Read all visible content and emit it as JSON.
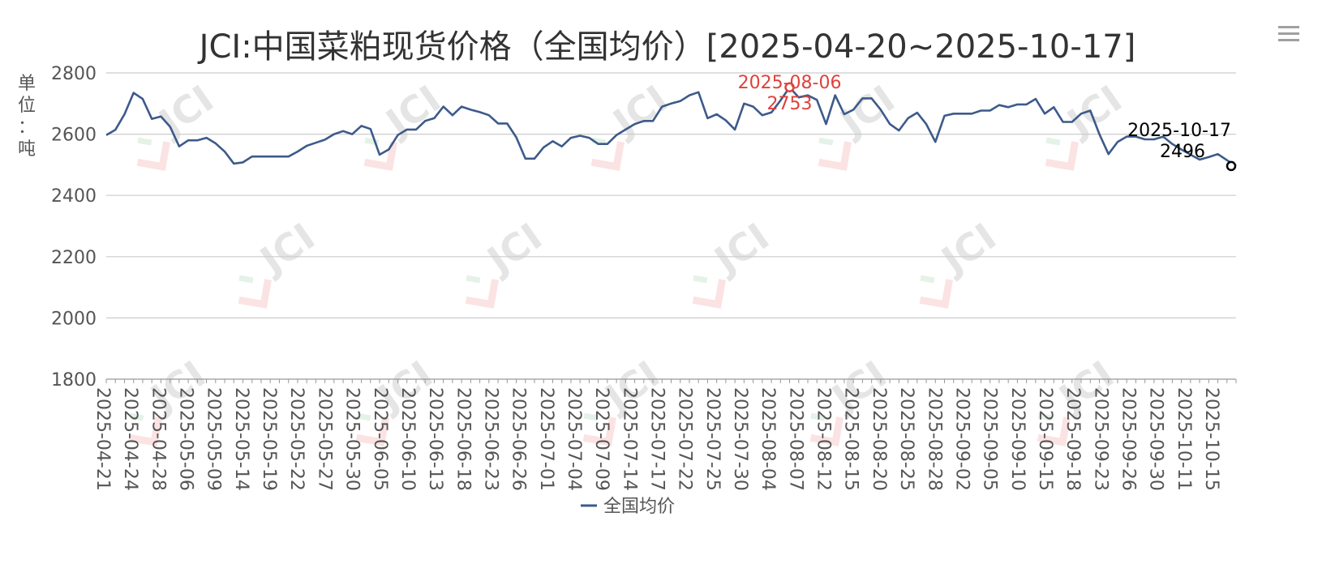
{
  "chart_data": {
    "type": "line",
    "title": "JCI:中国菜粕现货价格（全国均价）[2025-04-20~2025-10-17]",
    "ylabel": "单位：吨",
    "ylim": [
      1800,
      2800
    ],
    "y_ticks": [
      "2800",
      "2600",
      "2400",
      "2200",
      "2000",
      "1800"
    ],
    "grid": true,
    "legend_position": "bottom",
    "x_tick_labels": [
      "2025-04-21",
      "2025-04-24",
      "2025-04-28",
      "2025-05-06",
      "2025-05-09",
      "2025-05-14",
      "2025-05-19",
      "2025-05-22",
      "2025-05-27",
      "2025-05-30",
      "2025-06-05",
      "2025-06-10",
      "2025-06-13",
      "2025-06-18",
      "2025-06-23",
      "2025-06-26",
      "2025-07-01",
      "2025-07-04",
      "2025-07-09",
      "2025-07-14",
      "2025-07-17",
      "2025-07-22",
      "2025-07-25",
      "2025-07-30",
      "2025-08-04",
      "2025-08-07",
      "2025-08-12",
      "2025-08-15",
      "2025-08-20",
      "2025-08-25",
      "2025-08-28",
      "2025-09-02",
      "2025-09-05",
      "2025-09-10",
      "2025-09-15",
      "2025-09-18",
      "2025-09-23",
      "2025-09-26",
      "2025-09-30",
      "2025-10-11",
      "2025-10-15"
    ],
    "series": [
      {
        "name": "全国均价",
        "color": "#3d5a8a",
        "values": [
          2597,
          2614,
          2665,
          2735,
          2715,
          2650,
          2658,
          2625,
          2560,
          2580,
          2580,
          2588,
          2570,
          2543,
          2504,
          2508,
          2527,
          2527,
          2527,
          2527,
          2527,
          2543,
          2562,
          2572,
          2582,
          2600,
          2610,
          2600,
          2627,
          2617,
          2533,
          2550,
          2597,
          2615,
          2615,
          2643,
          2652,
          2690,
          2662,
          2690,
          2680,
          2672,
          2662,
          2635,
          2635,
          2590,
          2520,
          2520,
          2557,
          2577,
          2560,
          2588,
          2595,
          2588,
          2568,
          2568,
          2597,
          2615,
          2633,
          2643,
          2643,
          2690,
          2700,
          2708,
          2727,
          2737,
          2652,
          2665,
          2645,
          2615,
          2700,
          2690,
          2662,
          2671,
          2710,
          2753,
          2720,
          2727,
          2712,
          2633,
          2727,
          2665,
          2680,
          2717,
          2717,
          2680,
          2633,
          2612,
          2652,
          2670,
          2633,
          2575,
          2660,
          2667,
          2667,
          2667,
          2677,
          2677,
          2695,
          2688,
          2697,
          2697,
          2715,
          2667,
          2688,
          2640,
          2640,
          2667,
          2677,
          2600,
          2535,
          2575,
          2592,
          2592,
          2583,
          2583,
          2592,
          2568,
          2550,
          2533,
          2517,
          2525,
          2535,
          2515,
          2496
        ]
      }
    ],
    "annotations": [
      {
        "date": "2025-08-06",
        "value": "2753",
        "color": "#e0413c"
      },
      {
        "date": "2025-10-17",
        "value": "2496",
        "color": "#000000"
      }
    ]
  },
  "watermark": "JCI"
}
